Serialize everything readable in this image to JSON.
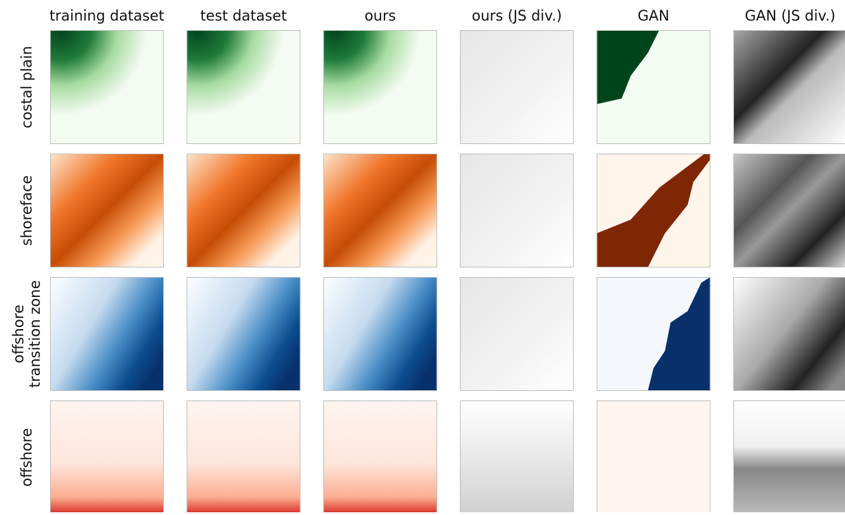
{
  "figure": {
    "columns": [
      "training dataset",
      "test dataset",
      "ours",
      "ours (JS div.)",
      "GAN",
      "GAN (JS div.)"
    ],
    "rows": [
      {
        "lines": [
          "costal plain"
        ]
      },
      {
        "lines": [
          "shoreface"
        ]
      },
      {
        "lines": [
          "offshore",
          "transition zone"
        ]
      },
      {
        "lines": [
          "offshore"
        ]
      }
    ]
  }
}
